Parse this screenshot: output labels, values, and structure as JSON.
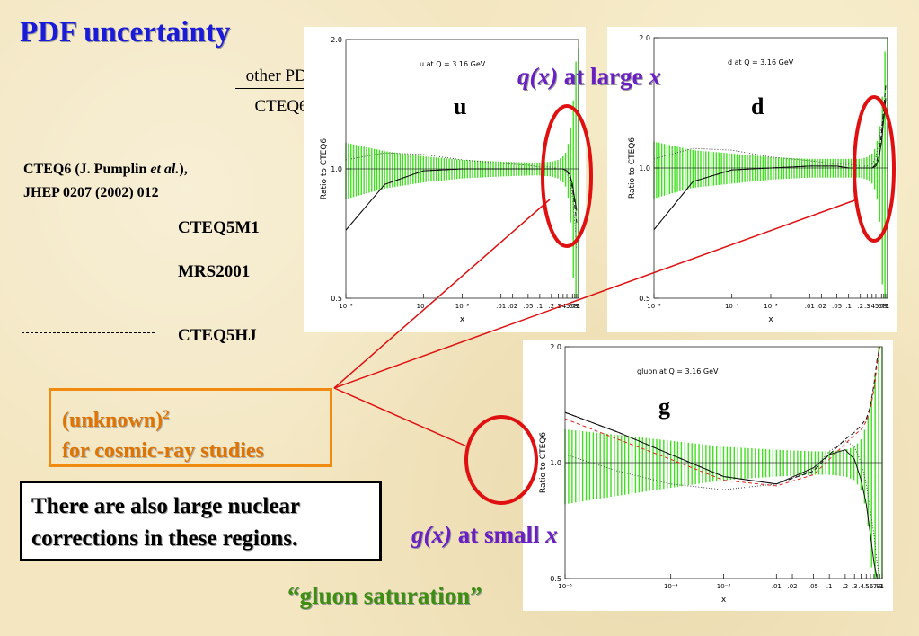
{
  "title": "PDF uncertainty",
  "ratio": {
    "numerator": "other PDF",
    "denominator": "CTEQ6"
  },
  "reference": {
    "line1_pre": "CTEQ6 (J. Pumplin ",
    "line1_em": "et al.",
    "line1_post": "),",
    "line2": "JHEP 0207 (2002) 012"
  },
  "legend": [
    {
      "label": "CTEQ5M1",
      "style": "solid"
    },
    {
      "label": "MRS2001",
      "style": "dotted"
    },
    {
      "label": "CTEQ5HJ",
      "style": "dashed"
    }
  ],
  "headline_qx": {
    "expr": "q(x)",
    "text": " at large ",
    "var": "x"
  },
  "headline_gx": {
    "expr": "g(x)",
    "text": " at small ",
    "var": "x"
  },
  "flavors": {
    "u": "u",
    "d": "d",
    "g": "g"
  },
  "unknown_box": {
    "line1": "(unknown)",
    "sup": "2",
    "line2": "for cosmic-ray studies"
  },
  "nuclear_box": {
    "line1": "There are also large nuclear",
    "line2": "corrections in these regions."
  },
  "saturation": "“gluon saturation”",
  "colors": {
    "title": "#1a1adb",
    "purple": "#6a1fc4",
    "green": "#3e8e12",
    "orange": "#f08a10",
    "red_circle": "#e01010",
    "band": "#3fe01e"
  },
  "chart_data": [
    {
      "type": "line",
      "title": "u at Q = 3.16 GeV",
      "xlabel": "x",
      "ylabel": "Ratio to CTEQ6",
      "xscale": "log",
      "ylim": [
        0.5,
        2.0
      ],
      "yticks": [
        "0.5",
        "1.0",
        "2.0"
      ],
      "xticks": [
        "10⁻⁶",
        "10⁻⁴",
        "10⁻³",
        ".01",
        ".02",
        ".05",
        ".1",
        ".2",
        ".3",
        ".4",
        ".5",
        ".6",
        ".7",
        ".8",
        ".9",
        "1"
      ],
      "x": [
        1e-06,
        1e-05,
        0.0001,
        0.001,
        0.01,
        0.05,
        0.1,
        0.2,
        0.3,
        0.4,
        0.5,
        0.6,
        0.7,
        0.8,
        0.9
      ],
      "band_halfwidth": [
        0.15,
        0.1,
        0.07,
        0.05,
        0.04,
        0.035,
        0.035,
        0.04,
        0.05,
        0.07,
        0.1,
        0.2,
        0.35,
        0.6,
        0.9
      ],
      "series": [
        {
          "style": "solid",
          "values": [
            0.72,
            0.92,
            0.99,
            1.0,
            1.0,
            1.0,
            1.0,
            1.0,
            1.0,
            1.0,
            0.99,
            0.97,
            0.92,
            0.85,
            0.8
          ]
        },
        {
          "style": "dotted",
          "values": [
            1.05,
            1.09,
            1.08,
            1.05,
            1.03,
            1.02,
            1.01,
            1.01,
            1.0,
            1.0,
            0.98,
            0.94,
            0.86,
            0.75,
            0.65
          ]
        },
        {
          "style": "dashed",
          "values": [
            0.72,
            0.92,
            0.99,
            1.0,
            1.0,
            1.0,
            1.0,
            1.0,
            1.0,
            1.0,
            0.99,
            0.96,
            0.9,
            0.82,
            0.75
          ]
        }
      ]
    },
    {
      "type": "line",
      "title": "d at Q = 3.16 GeV",
      "xlabel": "x",
      "ylabel": "Ratio to CTEQ6",
      "xscale": "log",
      "ylim": [
        0.5,
        2.0
      ],
      "yticks": [
        "0.5",
        "1.0",
        "2.0"
      ],
      "xticks": [
        "10⁻⁶",
        "10⁻⁴",
        "10⁻³",
        ".01",
        ".02",
        ".05",
        ".1",
        ".2",
        ".3",
        ".4",
        ".5",
        ".6",
        ".7",
        ".8",
        ".9",
        "1"
      ],
      "x": [
        1e-06,
        1e-05,
        0.0001,
        0.001,
        0.01,
        0.05,
        0.1,
        0.2,
        0.3,
        0.4,
        0.5,
        0.6,
        0.7,
        0.8,
        0.9
      ],
      "band_halfwidth": [
        0.15,
        0.1,
        0.08,
        0.06,
        0.05,
        0.05,
        0.05,
        0.05,
        0.06,
        0.08,
        0.12,
        0.2,
        0.35,
        0.65,
        1.0
      ],
      "series": [
        {
          "style": "solid",
          "values": [
            0.72,
            0.93,
            0.99,
            1.0,
            1.01,
            1.01,
            1.0,
            1.0,
            1.0,
            1.0,
            1.01,
            1.05,
            1.15,
            1.3,
            1.45
          ]
        },
        {
          "style": "dotted",
          "values": [
            1.05,
            1.11,
            1.1,
            1.06,
            1.04,
            1.02,
            1.02,
            1.01,
            1.01,
            1.02,
            1.06,
            1.15,
            1.25,
            1.35,
            1.4
          ]
        },
        {
          "style": "dashed",
          "values": [
            0.72,
            0.93,
            0.99,
            1.0,
            1.01,
            1.01,
            1.0,
            1.0,
            1.0,
            1.0,
            1.02,
            1.08,
            1.2,
            1.38,
            1.55
          ]
        }
      ]
    },
    {
      "type": "line",
      "title": "gluon at Q = 3.16 GeV",
      "xlabel": "x",
      "ylabel": "Ratio to CTEQ6",
      "xscale": "log",
      "ylim": [
        0.5,
        2.0
      ],
      "yticks": [
        "0.5",
        "1.0",
        "2.0"
      ],
      "xticks": [
        "10⁻⁶",
        "10⁻⁴",
        "10⁻³",
        ".01",
        ".02",
        ".05",
        ".1",
        ".2",
        ".3",
        ".4",
        ".5",
        ".6",
        ".7",
        ".8",
        ".9",
        "1"
      ],
      "x": [
        1e-06,
        1e-05,
        0.0001,
        0.001,
        0.01,
        0.05,
        0.1,
        0.2,
        0.3,
        0.4,
        0.5,
        0.6,
        0.7,
        0.8,
        0.9
      ],
      "band_halfwidth": [
        0.22,
        0.18,
        0.14,
        0.1,
        0.08,
        0.07,
        0.07,
        0.08,
        0.1,
        0.15,
        0.25,
        0.4,
        0.6,
        0.9,
        1.2
      ],
      "series": [
        {
          "style": "solid",
          "values": [
            1.35,
            1.2,
            1.05,
            0.92,
            0.88,
            0.97,
            1.05,
            1.08,
            1.02,
            0.9,
            0.78,
            0.65,
            0.55,
            0.5,
            0.5
          ]
        },
        {
          "style": "dotted",
          "values": [
            1.05,
            0.95,
            0.88,
            0.85,
            0.88,
            0.96,
            1.07,
            1.14,
            1.1,
            1.0,
            0.88,
            0.75,
            0.65,
            0.55,
            0.5
          ]
        },
        {
          "style": "dashed",
          "values": [
            1.35,
            1.2,
            1.05,
            0.92,
            0.88,
            0.95,
            1.05,
            1.15,
            1.2,
            1.25,
            1.3,
            1.4,
            1.6,
            1.85,
            2.0
          ]
        },
        {
          "style": "dashed-red",
          "values": [
            1.3,
            1.15,
            1.02,
            0.9,
            0.87,
            0.93,
            1.02,
            1.12,
            1.18,
            1.22,
            1.28,
            1.38,
            1.55,
            1.8,
            2.0
          ]
        }
      ]
    }
  ]
}
